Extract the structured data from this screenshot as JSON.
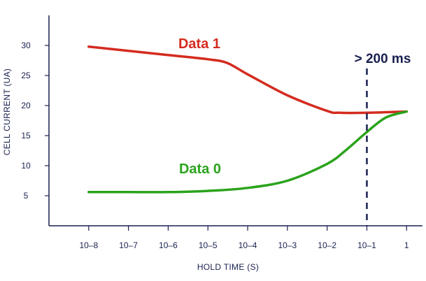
{
  "chart_data": {
    "type": "line",
    "xlabel": "HOLD TIME (S)",
    "ylabel": "CELL CURRENT (UA)",
    "x_scale": "log",
    "x": [
      1e-08,
      1e-07,
      1e-06,
      1e-05,
      0.0001,
      0.001,
      0.01,
      0.1,
      1
    ],
    "x_tick_labels": [
      "10–8",
      "10–7",
      "10–6",
      "10–5",
      "10–4",
      "10–3",
      "10–2",
      "10–1",
      "1"
    ],
    "y_ticks": [
      5,
      10,
      15,
      20,
      25,
      30
    ],
    "ylim": [
      0,
      35
    ],
    "xlim_log10": [
      -9,
      0.4
    ],
    "grid": false,
    "series": [
      {
        "name": "Data 1",
        "color": "#d42b1f",
        "x": [
          1e-08,
          1e-07,
          1e-06,
          1e-05,
          3e-05,
          0.0001,
          0.001,
          0.01,
          0.02,
          0.1,
          1
        ],
        "values": [
          29.8,
          29.1,
          28.4,
          27.7,
          27.1,
          25.2,
          21.7,
          19.1,
          18.8,
          18.8,
          19
        ]
      },
      {
        "name": "Data 0",
        "color": "#2aa31c",
        "x": [
          1e-08,
          1e-07,
          1e-06,
          1e-05,
          0.0001,
          0.001,
          0.01,
          0.03,
          0.1,
          0.3,
          1
        ],
        "values": [
          5.6,
          5.6,
          5.6,
          5.8,
          6.3,
          7.5,
          10.3,
          12.6,
          15.6,
          18.0,
          19
        ]
      }
    ],
    "annotations": [
      {
        "text": "> 200 ms",
        "x": 0.1,
        "style": "dashed-vertical-line"
      }
    ]
  }
}
